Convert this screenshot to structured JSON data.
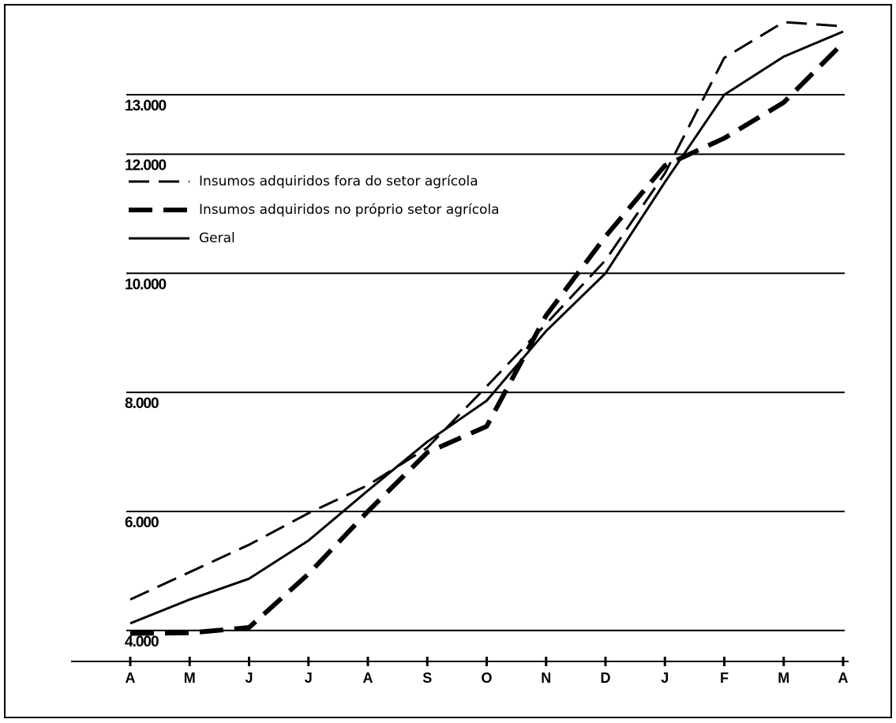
{
  "chart_data": {
    "type": "line",
    "categories": [
      "A",
      "M",
      "J",
      "J",
      "A",
      "S",
      "O",
      "N",
      "D",
      "J",
      "F",
      "M",
      "A"
    ],
    "ylim": [
      3480,
      14400
    ],
    "yticks": [
      {
        "value": 4000,
        "label": "4.000"
      },
      {
        "value": 6000,
        "label": "6.000"
      },
      {
        "value": 8000,
        "label": "8.000"
      },
      {
        "value": 10000,
        "label": "10.000"
      },
      {
        "value": 12000,
        "label": "12.000"
      },
      {
        "value": 13000,
        "label": "13.000"
      }
    ],
    "grid": true,
    "legend": "upper-left",
    "series": [
      {
        "name": "Insumos adquiridos fora do setor agrícola",
        "color": "#000000",
        "line_style": "dashed",
        "values": [
          4520,
          4980,
          5440,
          5970,
          6440,
          7070,
          8100,
          9150,
          10220,
          11680,
          13620,
          14220,
          14150
        ]
      },
      {
        "name": "Insumos adquiridos no próprio setor agrícola",
        "color": "#000000",
        "line_style": "thick-dashed",
        "values": [
          3950,
          3960,
          4050,
          4950,
          6000,
          6990,
          7430,
          9290,
          10620,
          11810,
          12270,
          12870,
          13870
        ]
      },
      {
        "name": "Geral",
        "color": "#000000",
        "line_style": "solid",
        "values": [
          4120,
          4520,
          4870,
          5510,
          6350,
          7170,
          7860,
          9030,
          10000,
          11530,
          13000,
          13640,
          14060
        ]
      }
    ]
  }
}
